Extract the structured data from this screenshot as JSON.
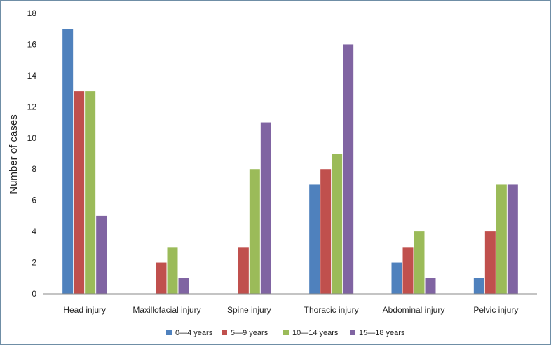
{
  "chart_data": {
    "type": "bar",
    "title": "",
    "xlabel": "",
    "ylabel": "Number of cases",
    "ylim": [
      0,
      18
    ],
    "yticks": [
      0,
      2,
      4,
      6,
      8,
      10,
      12,
      14,
      16,
      18
    ],
    "grid": false,
    "legend_position": "bottom",
    "categories": [
      "Head injury",
      "Maxillofacial injury",
      "Spine injury",
      "Thoracic injury",
      "Abdominal injury",
      "Pelvic injury"
    ],
    "series": [
      {
        "name": "0—4 years",
        "color": "#4f81bd",
        "values": [
          17,
          0,
          0,
          7,
          2,
          1
        ]
      },
      {
        "name": "5—9 years",
        "color": "#c0504d",
        "values": [
          13,
          2,
          3,
          8,
          3,
          4
        ]
      },
      {
        "name": "10—14 years",
        "color": "#9bbb59",
        "values": [
          13,
          3,
          8,
          9,
          4,
          7
        ]
      },
      {
        "name": "15—18 years",
        "color": "#8064a2",
        "values": [
          5,
          1,
          11,
          16,
          1,
          7
        ]
      }
    ]
  }
}
